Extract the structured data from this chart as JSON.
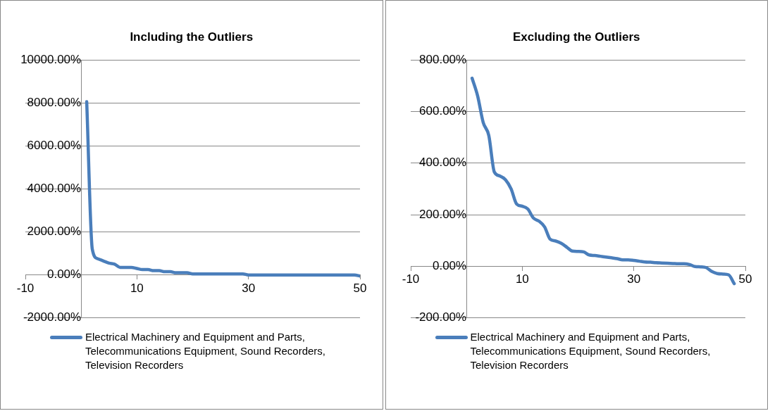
{
  "chart_data": [
    {
      "type": "line",
      "title": "Including the Outliers",
      "x": [
        1,
        2,
        3,
        4,
        5,
        6,
        7,
        8,
        9,
        10,
        11,
        12,
        13,
        14,
        15,
        16,
        17,
        18,
        19,
        20,
        21,
        22,
        23,
        24,
        25,
        26,
        27,
        28,
        29,
        30,
        31,
        32,
        33,
        34,
        35,
        36,
        37,
        38,
        39,
        40,
        41,
        42,
        43,
        44,
        45,
        46,
        47,
        48,
        49,
        50
      ],
      "series": [
        {
          "name": "Electrical Machinery and Equipment and Parts, Telecommunications Equipment, Sound Recorders, Television Recorders",
          "color": "#4a7ebb",
          "values": [
            8050,
            1200,
            750,
            650,
            550,
            500,
            350,
            350,
            350,
            300,
            250,
            250,
            200,
            200,
            150,
            150,
            100,
            100,
            100,
            50,
            50,
            50,
            50,
            50,
            50,
            50,
            50,
            50,
            50,
            0,
            0,
            0,
            0,
            0,
            0,
            0,
            0,
            0,
            0,
            0,
            0,
            0,
            0,
            0,
            0,
            0,
            0,
            0,
            0,
            -50
          ]
        }
      ],
      "xlim": [
        -10,
        50
      ],
      "xticks": [
        -10,
        10,
        30,
        50
      ],
      "ylim": [
        -2000,
        10000
      ],
      "yticks": [
        {
          "value": -2000,
          "label": "-2000.00%"
        },
        {
          "value": 0,
          "label": "0.00%"
        },
        {
          "value": 2000,
          "label": "2000.00%"
        },
        {
          "value": 4000,
          "label": "4000.00%"
        },
        {
          "value": 6000,
          "label": "6000.00%"
        },
        {
          "value": 8000,
          "label": "8000.00%"
        },
        {
          "value": 10000,
          "label": "10000.00%"
        }
      ],
      "grid": "y",
      "legend": "bottom",
      "marker": "none"
    },
    {
      "type": "line",
      "title": "Excluding the Outliers",
      "x": [
        1,
        2,
        3,
        4,
        5,
        6,
        7,
        8,
        9,
        10,
        11,
        12,
        13,
        14,
        15,
        16,
        17,
        18,
        19,
        20,
        21,
        22,
        23,
        24,
        25,
        26,
        27,
        28,
        29,
        30,
        31,
        32,
        33,
        34,
        35,
        36,
        37,
        38,
        39,
        40,
        41,
        42,
        43,
        44,
        45,
        46,
        47,
        48
      ],
      "series": [
        {
          "name": "Electrical Machinery and Equipment and Parts, Telecommunications Equipment, Sound Recorders, Television Recorders",
          "color": "#4a7ebb",
          "values": [
            729,
            660,
            557,
            507,
            365,
            350,
            335,
            300,
            241,
            233,
            222,
            187,
            175,
            153,
            105,
            98,
            89,
            74,
            59,
            58,
            56,
            44,
            42,
            39,
            36,
            33,
            30,
            25,
            25,
            23,
            20,
            17,
            16,
            14,
            13,
            12,
            11,
            10,
            10,
            7,
            -1,
            -2,
            -5,
            -20,
            -28,
            -30,
            -33,
            -67
          ]
        }
      ],
      "xlim": [
        -10,
        50
      ],
      "xticks": [
        -10,
        10,
        30,
        50
      ],
      "ylim": [
        -200,
        800
      ],
      "yticks": [
        {
          "value": -200,
          "label": "-200.00%"
        },
        {
          "value": 0,
          "label": "0.00%"
        },
        {
          "value": 200,
          "label": "200.00%"
        },
        {
          "value": 400,
          "label": "400.00%"
        },
        {
          "value": 600,
          "label": "600.00%"
        },
        {
          "value": 800,
          "label": "800.00%"
        }
      ],
      "grid": "y",
      "legend": "bottom",
      "marker": "none"
    }
  ]
}
